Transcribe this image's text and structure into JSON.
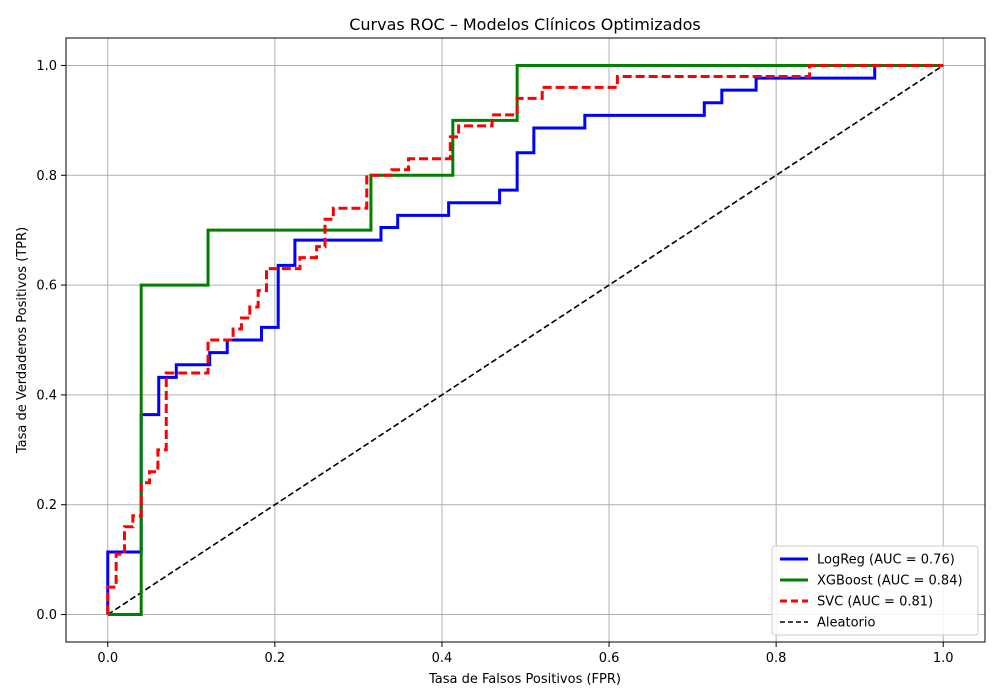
{
  "chart_data": {
    "type": "line",
    "title": "Curvas ROC – Modelos Clínicos Optimizados",
    "xlabel": "Tasa de Falsos Positivos (FPR)",
    "ylabel": "Tasa de Verdaderos Positivos (TPR)",
    "xlim": [
      -0.05,
      1.05
    ],
    "ylim": [
      -0.05,
      1.05
    ],
    "xticks": [
      "0.0",
      "0.2",
      "0.4",
      "0.6",
      "0.8",
      "1.0"
    ],
    "yticks": [
      "0.0",
      "0.2",
      "0.4",
      "0.6",
      "0.8",
      "1.0"
    ],
    "grid": true,
    "legend_position": "lower-right",
    "series": [
      {
        "name": "LogReg (AUC = 0.76)",
        "color": "#0000ff",
        "style": "solid",
        "x": [
          0,
          0,
          0.04,
          0.04,
          0.061,
          0.061,
          0.082,
          0.082,
          0.122,
          0.122,
          0.143,
          0.143,
          0.184,
          0.184,
          0.204,
          0.204,
          0.224,
          0.224,
          0.327,
          0.327,
          0.347,
          0.347,
          0.408,
          0.408,
          0.469,
          0.469,
          0.49,
          0.49,
          0.51,
          0.51,
          0.571,
          0.571,
          0.714,
          0.714,
          0.735,
          0.735,
          0.776,
          0.776,
          0.918,
          0.918,
          1.0
        ],
        "y": [
          0,
          0.114,
          0.114,
          0.364,
          0.364,
          0.432,
          0.432,
          0.455,
          0.455,
          0.477,
          0.477,
          0.5,
          0.5,
          0.523,
          0.523,
          0.636,
          0.636,
          0.682,
          0.682,
          0.705,
          0.705,
          0.727,
          0.727,
          0.75,
          0.75,
          0.773,
          0.773,
          0.841,
          0.841,
          0.886,
          0.886,
          0.909,
          0.909,
          0.932,
          0.932,
          0.955,
          0.955,
          0.977,
          0.977,
          1.0,
          1.0
        ]
      },
      {
        "name": "XGBoost (AUC = 0.84)",
        "color": "#008000",
        "style": "solid",
        "x": [
          0,
          0.04,
          0.04,
          0.12,
          0.12,
          0.315,
          0.315,
          0.413,
          0.413,
          0.49,
          0.49,
          1.0
        ],
        "y": [
          0,
          0,
          0.6,
          0.6,
          0.7,
          0.7,
          0.8,
          0.8,
          0.9,
          0.9,
          1.0,
          1.0
        ]
      },
      {
        "name": "SVC (AUC = 0.81)",
        "color": "#ff0000",
        "style": "dashed",
        "x": [
          0,
          0,
          0.01,
          0.01,
          0.02,
          0.02,
          0.03,
          0.03,
          0.04,
          0.04,
          0.05,
          0.05,
          0.06,
          0.06,
          0.07,
          0.07,
          0.12,
          0.12,
          0.15,
          0.15,
          0.16,
          0.16,
          0.17,
          0.17,
          0.18,
          0.18,
          0.19,
          0.19,
          0.23,
          0.23,
          0.25,
          0.25,
          0.26,
          0.26,
          0.27,
          0.27,
          0.31,
          0.31,
          0.34,
          0.34,
          0.36,
          0.36,
          0.41,
          0.41,
          0.42,
          0.42,
          0.46,
          0.46,
          0.49,
          0.49,
          0.52,
          0.52,
          0.61,
          0.61,
          0.84,
          0.84,
          1.0
        ],
        "y": [
          0,
          0.05,
          0.05,
          0.11,
          0.11,
          0.16,
          0.16,
          0.18,
          0.18,
          0.24,
          0.24,
          0.26,
          0.26,
          0.3,
          0.3,
          0.44,
          0.44,
          0.5,
          0.5,
          0.52,
          0.52,
          0.54,
          0.54,
          0.56,
          0.56,
          0.59,
          0.59,
          0.63,
          0.63,
          0.65,
          0.65,
          0.67,
          0.67,
          0.72,
          0.72,
          0.74,
          0.74,
          0.8,
          0.8,
          0.81,
          0.81,
          0.83,
          0.83,
          0.87,
          0.87,
          0.89,
          0.89,
          0.91,
          0.91,
          0.94,
          0.94,
          0.96,
          0.96,
          0.98,
          0.98,
          1.0,
          1.0
        ]
      },
      {
        "name": "Aleatorio",
        "color": "#000000",
        "style": "dashed",
        "x": [
          0,
          1
        ],
        "y": [
          0,
          1
        ]
      }
    ]
  }
}
